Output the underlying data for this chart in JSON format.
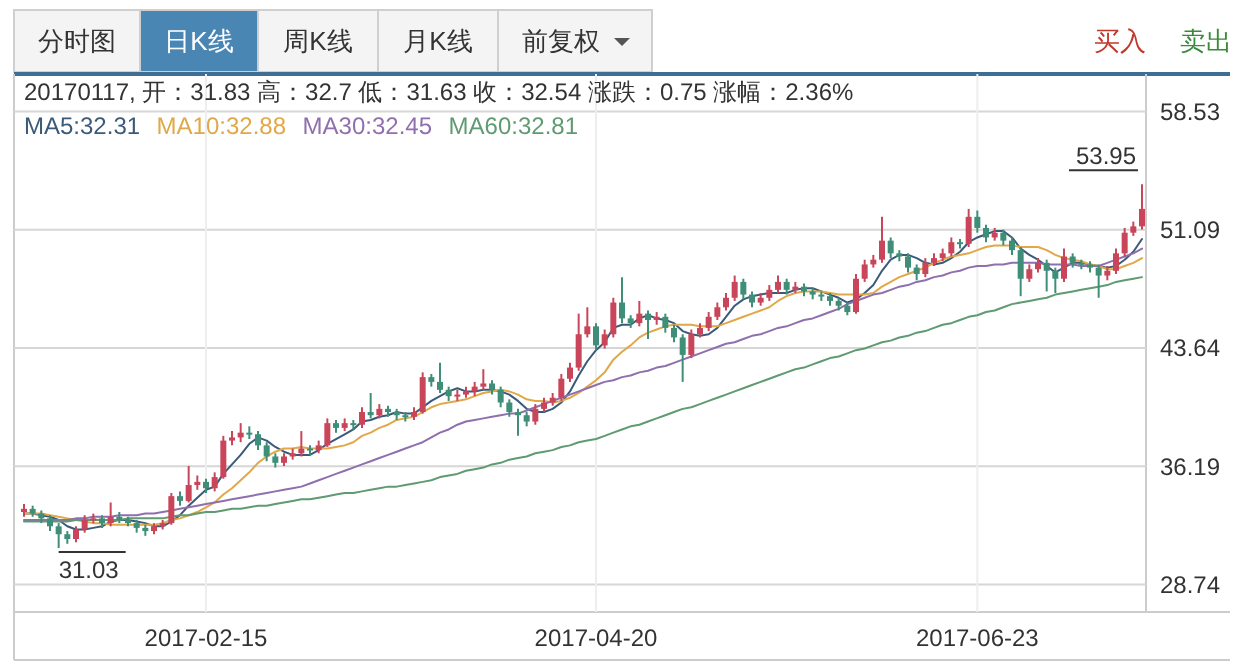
{
  "chart_data": {
    "type": "candlestick",
    "categories": [
      null,
      null,
      null,
      null,
      null,
      null,
      null,
      null,
      null,
      null,
      null,
      null,
      null,
      null,
      null,
      null,
      null,
      null,
      null,
      null,
      null,
      "2017-02-15",
      null,
      null,
      null,
      null,
      null,
      null,
      null,
      null,
      null,
      null,
      null,
      null,
      null,
      null,
      null,
      null,
      null,
      null,
      null,
      null,
      null,
      null,
      null,
      null,
      null,
      null,
      null,
      null,
      null,
      null,
      null,
      null,
      null,
      null,
      null,
      null,
      null,
      null,
      null,
      null,
      null,
      null,
      null,
      null,
      "2017-04-20",
      null,
      null,
      null,
      null,
      null,
      null,
      null,
      null,
      null,
      null,
      null,
      null,
      null,
      null,
      null,
      null,
      null,
      null,
      null,
      null,
      null,
      null,
      null,
      null,
      null,
      null,
      null,
      null,
      null,
      null,
      null,
      null,
      null,
      null,
      null,
      null,
      null,
      null,
      null,
      null,
      null,
      null,
      null,
      "2017-06-23",
      null,
      null,
      null,
      null,
      null,
      null,
      null,
      null,
      null,
      null,
      null,
      null,
      null,
      null,
      null,
      null,
      null,
      null,
      null
    ],
    "ylim": [
      27.0,
      60.9
    ],
    "yticks": [
      28.74,
      36.19,
      43.64,
      51.09,
      58.53
    ],
    "grid": true,
    "legend": "top left",
    "colors": [
      "#c9465a",
      "#3f8f78",
      "#3f8f78",
      "#3f8f78",
      "#3f8f78",
      "#3f8f78",
      "#c9465a",
      "#c9465a",
      "#c9465a",
      "#3f8f78",
      "#c9465a",
      "#3f8f78",
      "#3f8f78",
      "#3f8f78",
      "#3f8f78",
      "#c9465a",
      "#c9465a",
      "#c9465a",
      "#3f8f78",
      "#c9465a",
      "#c9465a",
      "#3f8f78",
      "#c9465a",
      "#c9465a",
      "#c9465a",
      "#c9465a",
      "#3f8f78",
      "#3f8f78",
      "#3f8f78",
      "#3f8f78",
      "#c9465a",
      "#c9465a",
      "#c9465a",
      "#3f8f78",
      "#c9465a",
      "#c9465a",
      "#3f8f78",
      "#c9465a",
      "#3f8f78",
      "#c9465a",
      "#3f8f78",
      "#c9465a",
      "#3f8f78",
      "#3f8f78",
      "#3f8f78",
      "#c9465a",
      "#c9465a",
      "#3f8f78",
      "#3f8f78",
      "#3f8f78",
      "#c9465a",
      "#c9465a",
      "#c9465a",
      "#c9465a",
      "#3f8f78",
      "#3f8f78",
      "#3f8f78",
      "#3f8f78",
      "#3f8f78",
      "#c9465a",
      "#c9465a",
      "#c9465a",
      "#c9465a",
      "#c9465a",
      "#c9465a",
      "#c9465a",
      "#3f8f78",
      "#c9465a",
      "#c9465a",
      "#3f8f78",
      "#3f8f78",
      "#c9465a",
      "#3f8f78",
      "#c9465a",
      "#3f8f78",
      "#3f8f78",
      "#3f8f78",
      "#c9465a",
      "#c9465a",
      "#c9465a",
      "#c9465a",
      "#c9465a",
      "#c9465a",
      "#3f8f78",
      "#3f8f78",
      "#c9465a",
      "#c9465a",
      "#c9465a",
      "#3f8f78",
      "#c9465a",
      "#3f8f78",
      "#3f8f78",
      "#3f8f78",
      "#3f8f78",
      "#3f8f78",
      "#3f8f78",
      "#c9465a",
      "#c9465a",
      "#c9465a",
      "#c9465a",
      "#3f8f78",
      "#3f8f78",
      "#3f8f78",
      "#3f8f78",
      "#c9465a",
      "#c9465a",
      "#c9465a",
      "#c9465a",
      "#3f8f78",
      "#c9465a",
      "#3f8f78",
      "#3f8f78",
      "#c9465a",
      "#3f8f78",
      "#3f8f78",
      "#3f8f78",
      "#c9465a",
      "#c9465a",
      "#3f8f78",
      "#3f8f78",
      "#c9465a",
      "#3f8f78",
      "#3f8f78",
      "#3f8f78",
      "#3f8f78",
      "#c9465a",
      "#c9465a",
      "#c9465a",
      "#c9465a",
      "#c9465a"
    ],
    "annotations": [
      "分时图",
      "日K线",
      "周K线",
      "月K线",
      "前复权",
      "买入",
      "卖出",
      "20170117, 开：31.83 高：32.7 低：31.63 收：32.54 涨跌：0.75 涨幅：2.36%",
      "53.95",
      "31.03"
    ],
    "ohlc": [
      [
        33.3,
        33.8,
        33.0,
        33.5
      ],
      [
        33.5,
        33.7,
        33.0,
        33.2
      ],
      [
        33.2,
        33.4,
        32.6,
        32.9
      ],
      [
        32.9,
        33.1,
        32.1,
        32.4
      ],
      [
        32.4,
        32.6,
        31.03,
        31.9
      ],
      [
        31.9,
        32.1,
        31.3,
        31.6
      ],
      [
        31.6,
        32.4,
        31.4,
        32.2
      ],
      [
        32.2,
        33.1,
        32.0,
        32.8
      ],
      [
        32.8,
        33.2,
        32.6,
        32.9
      ],
      [
        32.9,
        33.1,
        32.3,
        32.6
      ],
      [
        32.6,
        33.9,
        32.4,
        33.0
      ],
      [
        33.0,
        33.3,
        32.6,
        32.8
      ],
      [
        32.8,
        33.0,
        32.4,
        32.6
      ],
      [
        32.6,
        32.8,
        32.0,
        32.3
      ],
      [
        32.3,
        32.5,
        31.8,
        32.1
      ],
      [
        32.1,
        32.6,
        31.9,
        32.4
      ],
      [
        32.4,
        32.8,
        32.2,
        32.6
      ],
      [
        32.6,
        34.5,
        32.5,
        34.3
      ],
      [
        34.3,
        34.6,
        33.7,
        34.0
      ],
      [
        34.0,
        36.2,
        33.9,
        35.0
      ],
      [
        35.0,
        35.6,
        34.7,
        35.2
      ],
      [
        35.2,
        35.4,
        34.5,
        34.8
      ],
      [
        34.8,
        35.8,
        34.6,
        35.5
      ],
      [
        35.5,
        38.1,
        35.4,
        37.8
      ],
      [
        37.8,
        38.4,
        37.5,
        38.0
      ],
      [
        38.0,
        38.9,
        37.7,
        38.3
      ],
      [
        38.3,
        38.7,
        37.9,
        38.2
      ],
      [
        38.2,
        38.4,
        37.2,
        37.5
      ],
      [
        37.5,
        37.7,
        36.5,
        36.8
      ],
      [
        36.8,
        37.0,
        36.1,
        36.4
      ],
      [
        36.4,
        37.0,
        36.2,
        36.8
      ],
      [
        36.8,
        37.3,
        36.6,
        37.0
      ],
      [
        37.0,
        38.4,
        36.8,
        37.3
      ],
      [
        37.3,
        37.5,
        36.9,
        37.2
      ],
      [
        37.2,
        37.8,
        37.0,
        37.5
      ],
      [
        37.5,
        39.2,
        37.4,
        38.9
      ],
      [
        38.9,
        39.1,
        38.3,
        38.6
      ],
      [
        38.6,
        39.2,
        38.4,
        38.9
      ],
      [
        38.9,
        39.1,
        38.5,
        38.8
      ],
      [
        38.8,
        39.9,
        38.6,
        39.6
      ],
      [
        39.6,
        40.8,
        39.2,
        39.4
      ],
      [
        39.4,
        40.1,
        39.2,
        39.8
      ],
      [
        39.8,
        40.0,
        39.3,
        39.6
      ],
      [
        39.6,
        39.8,
        39.1,
        39.4
      ],
      [
        39.4,
        39.6,
        39.0,
        39.3
      ],
      [
        39.3,
        39.9,
        39.1,
        39.6
      ],
      [
        39.6,
        42.1,
        39.5,
        41.8
      ],
      [
        41.8,
        42.0,
        41.2,
        41.5
      ],
      [
        41.5,
        42.7,
        40.8,
        41.0
      ],
      [
        41.0,
        41.2,
        40.3,
        40.6
      ],
      [
        40.6,
        41.0,
        40.3,
        40.7
      ],
      [
        40.7,
        41.2,
        40.5,
        40.9
      ],
      [
        40.9,
        41.5,
        40.6,
        41.2
      ],
      [
        41.2,
        42.3,
        41.0,
        41.4
      ],
      [
        41.4,
        41.6,
        40.7,
        41.0
      ],
      [
        41.0,
        41.2,
        39.9,
        40.2
      ],
      [
        40.2,
        40.4,
        39.3,
        39.6
      ],
      [
        39.6,
        39.8,
        38.1,
        39.4
      ],
      [
        39.4,
        39.6,
        38.7,
        39.0
      ],
      [
        39.0,
        40.1,
        38.8,
        39.8
      ],
      [
        39.8,
        40.5,
        39.6,
        40.2
      ],
      [
        40.2,
        40.8,
        40.0,
        40.5
      ],
      [
        40.5,
        42.0,
        40.3,
        41.7
      ],
      [
        41.7,
        42.7,
        41.5,
        42.4
      ],
      [
        42.4,
        45.8,
        42.2,
        44.5
      ],
      [
        44.5,
        46.2,
        44.3,
        45.0
      ],
      [
        45.0,
        45.2,
        43.5,
        43.8
      ],
      [
        43.8,
        44.8,
        43.6,
        44.5
      ],
      [
        44.5,
        46.8,
        44.3,
        46.5
      ],
      [
        46.5,
        48.1,
        45.2,
        45.5
      ],
      [
        45.5,
        45.7,
        44.9,
        45.2
      ],
      [
        45.2,
        46.6,
        45.0,
        45.8
      ],
      [
        45.8,
        46.0,
        44.2,
        45.4
      ],
      [
        45.4,
        45.9,
        45.1,
        45.6
      ],
      [
        45.6,
        45.8,
        44.6,
        44.9
      ],
      [
        44.9,
        45.1,
        44.0,
        44.3
      ],
      [
        44.3,
        44.5,
        41.5,
        43.2
      ],
      [
        43.2,
        44.8,
        43.0,
        44.5
      ],
      [
        44.5,
        45.2,
        44.3,
        44.9
      ],
      [
        44.9,
        45.9,
        44.7,
        45.6
      ],
      [
        45.6,
        46.5,
        45.4,
        46.2
      ],
      [
        46.2,
        47.1,
        46.0,
        46.8
      ],
      [
        46.8,
        48.2,
        46.6,
        47.8
      ],
      [
        47.8,
        48.0,
        46.7,
        47.0
      ],
      [
        47.0,
        47.2,
        46.2,
        46.5
      ],
      [
        46.5,
        47.1,
        46.3,
        46.8
      ],
      [
        46.8,
        47.6,
        46.6,
        47.3
      ],
      [
        47.3,
        48.2,
        47.1,
        47.8
      ],
      [
        47.8,
        48.0,
        47.0,
        47.3
      ],
      [
        47.3,
        47.8,
        47.1,
        47.5
      ],
      [
        47.5,
        47.7,
        46.9,
        47.2
      ],
      [
        47.2,
        47.4,
        46.7,
        47.0
      ],
      [
        47.0,
        47.2,
        46.6,
        46.9
      ],
      [
        46.9,
        47.1,
        46.3,
        46.6
      ],
      [
        46.6,
        46.8,
        46.0,
        46.3
      ],
      [
        46.3,
        46.5,
        45.7,
        45.9
      ],
      [
        45.9,
        48.3,
        45.8,
        48.0
      ],
      [
        48.0,
        49.2,
        47.8,
        48.9
      ],
      [
        48.9,
        49.5,
        48.7,
        49.2
      ],
      [
        49.2,
        51.9,
        49.0,
        50.4
      ],
      [
        50.4,
        50.6,
        49.3,
        49.6
      ],
      [
        49.6,
        49.8,
        49.1,
        49.4
      ],
      [
        49.4,
        49.6,
        48.4,
        48.7
      ],
      [
        48.7,
        48.9,
        47.9,
        48.3
      ],
      [
        48.3,
        49.3,
        48.1,
        49.0
      ],
      [
        49.0,
        49.6,
        48.8,
        49.3
      ],
      [
        49.3,
        49.9,
        49.1,
        49.6
      ],
      [
        49.6,
        50.6,
        49.4,
        50.3
      ],
      [
        50.3,
        50.5,
        49.9,
        50.2
      ],
      [
        50.2,
        52.4,
        50.0,
        51.9
      ],
      [
        51.9,
        52.3,
        50.9,
        51.2
      ],
      [
        51.2,
        51.4,
        50.3,
        50.6
      ],
      [
        50.6,
        51.2,
        50.4,
        50.9
      ],
      [
        50.9,
        51.1,
        50.1,
        50.4
      ],
      [
        50.4,
        50.6,
        49.5,
        49.8
      ],
      [
        49.8,
        50.0,
        46.9,
        48.0
      ],
      [
        48.0,
        48.9,
        47.8,
        48.6
      ],
      [
        48.6,
        49.3,
        48.4,
        49.0
      ],
      [
        49.0,
        49.2,
        47.2,
        48.5
      ],
      [
        48.5,
        48.7,
        47.1,
        48.0
      ],
      [
        48.0,
        49.9,
        47.8,
        49.4
      ],
      [
        49.4,
        49.6,
        48.7,
        49.0
      ],
      [
        49.0,
        49.2,
        48.6,
        48.9
      ],
      [
        48.9,
        49.1,
        48.4,
        48.7
      ],
      [
        48.7,
        48.9,
        46.8,
        48.2
      ],
      [
        48.2,
        48.8,
        47.9,
        48.5
      ],
      [
        48.5,
        49.9,
        48.3,
        49.6
      ],
      [
        49.6,
        51.2,
        49.4,
        50.9
      ],
      [
        50.9,
        51.6,
        50.7,
        51.3
      ],
      [
        51.3,
        53.95,
        51.1,
        52.4
      ]
    ],
    "series": [
      {
        "type": "line",
        "name": "MA5:32.31",
        "color": "#3b5a7a",
        "values": [
          33.2,
          33.2,
          33.1,
          33.0,
          32.8,
          32.4,
          32.2,
          32.2,
          32.3,
          32.4,
          32.7,
          32.8,
          32.8,
          32.7,
          32.6,
          32.4,
          32.4,
          32.7,
          33.1,
          33.7,
          34.2,
          34.7,
          34.9,
          35.7,
          36.3,
          36.9,
          37.6,
          38.0,
          37.8,
          37.4,
          37.1,
          36.9,
          36.9,
          36.9,
          37.2,
          37.6,
          37.9,
          38.2,
          38.5,
          39.0,
          39.1,
          39.3,
          39.4,
          39.6,
          39.5,
          39.5,
          39.9,
          40.3,
          40.6,
          40.9,
          41.1,
          40.9,
          40.9,
          41.0,
          41.0,
          40.9,
          40.7,
          40.3,
          39.8,
          39.6,
          39.6,
          39.8,
          40.2,
          40.9,
          41.9,
          42.8,
          43.5,
          44.0,
          44.9,
          45.1,
          45.1,
          45.5,
          45.7,
          45.5,
          45.4,
          45.2,
          44.7,
          44.5,
          44.4,
          44.5,
          44.9,
          45.6,
          46.3,
          46.7,
          46.9,
          47.0,
          47.1,
          47.1,
          47.1,
          47.3,
          47.4,
          47.4,
          47.2,
          47.0,
          46.8,
          46.5,
          46.7,
          47.1,
          47.6,
          48.5,
          49.2,
          49.5,
          49.5,
          49.3,
          49.0,
          48.9,
          49.0,
          49.3,
          49.7,
          50.3,
          50.6,
          50.8,
          51.0,
          51.0,
          50.6,
          49.9,
          49.5,
          49.2,
          48.8,
          48.4,
          48.7,
          49.0,
          49.0,
          48.9,
          48.8,
          48.7,
          48.8,
          49.2,
          49.7,
          50.5
        ]
      },
      {
        "type": "line",
        "name": "MA10:32.88",
        "color": "#e0a848",
        "values": [
          33.2,
          33.2,
          33.2,
          33.1,
          33.0,
          32.9,
          32.8,
          32.7,
          32.6,
          32.6,
          32.5,
          32.5,
          32.5,
          32.5,
          32.5,
          32.5,
          32.6,
          32.8,
          32.9,
          33.1,
          33.3,
          33.6,
          33.9,
          34.4,
          34.8,
          35.3,
          35.8,
          36.4,
          36.8,
          37.1,
          37.3,
          37.3,
          37.4,
          37.3,
          37.3,
          37.3,
          37.4,
          37.5,
          37.7,
          38.1,
          38.3,
          38.6,
          38.8,
          39.1,
          39.2,
          39.3,
          39.6,
          39.9,
          40.1,
          40.2,
          40.3,
          40.4,
          40.6,
          40.8,
          40.9,
          41.0,
          40.9,
          40.7,
          40.4,
          40.3,
          40.3,
          40.2,
          40.3,
          40.5,
          40.8,
          41.2,
          41.6,
          42.1,
          42.9,
          43.4,
          43.8,
          44.3,
          44.6,
          44.8,
          45.0,
          45.1,
          45.1,
          45.1,
          45.0,
          45.0,
          45.0,
          45.2,
          45.4,
          45.6,
          45.8,
          46.0,
          46.2,
          46.6,
          46.9,
          47.1,
          47.2,
          47.2,
          47.2,
          47.1,
          47.0,
          47.0,
          47.0,
          47.0,
          47.1,
          47.5,
          47.8,
          48.1,
          48.3,
          48.5,
          48.7,
          49.0,
          49.2,
          49.4,
          49.5,
          49.6,
          49.8,
          50.0,
          50.1,
          50.1,
          50.1,
          50.0,
          50.0,
          50.0,
          49.8,
          49.5,
          49.3,
          49.2,
          49.1,
          48.9,
          48.8,
          48.6,
          48.6,
          48.8,
          49.0,
          49.3
        ]
      },
      {
        "type": "line",
        "name": "MA30:32.45",
        "color": "#8f6fae",
        "values": [
          32.8,
          32.8,
          32.8,
          32.8,
          32.8,
          32.8,
          32.9,
          32.9,
          33.0,
          33.0,
          33.0,
          33.1,
          33.1,
          33.1,
          33.2,
          33.2,
          33.3,
          33.4,
          33.5,
          33.6,
          33.7,
          33.8,
          33.9,
          34.0,
          34.1,
          34.2,
          34.3,
          34.4,
          34.5,
          34.6,
          34.7,
          34.8,
          34.9,
          35.1,
          35.3,
          35.5,
          35.7,
          35.9,
          36.1,
          36.3,
          36.5,
          36.7,
          36.9,
          37.1,
          37.3,
          37.5,
          37.7,
          38.0,
          38.3,
          38.5,
          38.8,
          39.0,
          39.1,
          39.2,
          39.3,
          39.4,
          39.5,
          39.5,
          39.7,
          39.9,
          40.1,
          40.3,
          40.5,
          40.7,
          40.9,
          41.1,
          41.3,
          41.5,
          41.6,
          41.8,
          41.9,
          42.1,
          42.2,
          42.4,
          42.5,
          42.7,
          42.9,
          43.1,
          43.3,
          43.5,
          43.7,
          43.9,
          44.0,
          44.2,
          44.4,
          44.5,
          44.7,
          44.9,
          45.0,
          45.2,
          45.4,
          45.5,
          45.7,
          45.9,
          46.1,
          46.4,
          46.6,
          46.8,
          47.0,
          47.1,
          47.3,
          47.5,
          47.6,
          47.8,
          47.9,
          48.1,
          48.2,
          48.4,
          48.5,
          48.7,
          48.8,
          48.8,
          48.9,
          48.9,
          49.0,
          49.0,
          49.0,
          49.0,
          48.9,
          48.9,
          48.9,
          48.9,
          48.8,
          48.8,
          48.8,
          49.0,
          49.2,
          49.4,
          49.6,
          49.9
        ]
      },
      {
        "type": "line",
        "name": "MA60:32.81",
        "color": "#5f9a72",
        "values": [
          32.7,
          32.7,
          32.7,
          32.7,
          32.7,
          32.7,
          32.8,
          32.8,
          32.8,
          32.8,
          32.8,
          32.8,
          32.9,
          32.9,
          32.9,
          32.9,
          32.9,
          33.0,
          33.1,
          33.1,
          33.2,
          33.3,
          33.3,
          33.4,
          33.5,
          33.5,
          33.6,
          33.7,
          33.7,
          33.8,
          33.9,
          34.0,
          34.1,
          34.1,
          34.2,
          34.3,
          34.4,
          34.5,
          34.5,
          34.6,
          34.7,
          34.8,
          34.9,
          34.9,
          35.0,
          35.1,
          35.2,
          35.3,
          35.5,
          35.6,
          35.7,
          35.9,
          36.0,
          36.1,
          36.3,
          36.4,
          36.6,
          36.7,
          36.8,
          37.0,
          37.1,
          37.2,
          37.4,
          37.5,
          37.7,
          37.8,
          37.9,
          38.1,
          38.3,
          38.5,
          38.7,
          38.8,
          39.0,
          39.2,
          39.4,
          39.6,
          39.8,
          39.9,
          40.1,
          40.3,
          40.5,
          40.7,
          40.9,
          41.1,
          41.3,
          41.5,
          41.7,
          41.9,
          42.1,
          42.3,
          42.4,
          42.6,
          42.8,
          43.0,
          43.1,
          43.3,
          43.5,
          43.6,
          43.8,
          44.0,
          44.1,
          44.3,
          44.4,
          44.6,
          44.7,
          44.9,
          45.1,
          45.2,
          45.4,
          45.6,
          45.7,
          45.9,
          46.0,
          46.2,
          46.4,
          46.5,
          46.6,
          46.7,
          46.8,
          47.0,
          47.1,
          47.2,
          47.3,
          47.4,
          47.5,
          47.6,
          47.8,
          47.9,
          48.0,
          48.1
        ]
      }
    ]
  }
}
